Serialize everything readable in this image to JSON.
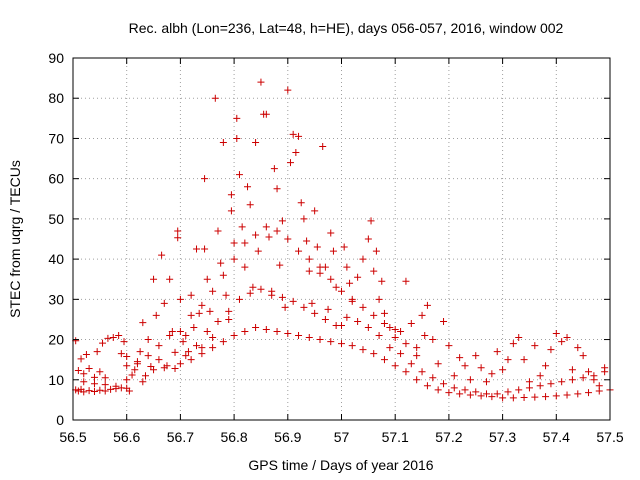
{
  "chart_data": {
    "type": "scatter",
    "title": "Rec. albh (Lon=236, Lat=48, h=HE), days 056-057, 2016, window 002",
    "xlabel": "GPS time / Days of year 2016",
    "ylabel": "STEC from uqrg / TECUs",
    "xlim": [
      56.5,
      57.5
    ],
    "ylim": [
      0,
      90
    ],
    "xticks": [
      "56.5",
      "56.6",
      "56.7",
      "56.8",
      "56.9",
      "57",
      "57.1",
      "57.2",
      "57.3",
      "57.4",
      "57.5"
    ],
    "yticks": [
      "0",
      "10",
      "20",
      "30",
      "40",
      "50",
      "60",
      "70",
      "80",
      "90"
    ],
    "grid": true,
    "marker": "plus",
    "color": "#cc0000",
    "points": [
      [
        56.505,
        7.5
      ],
      [
        56.51,
        7.2
      ],
      [
        56.515,
        7.6
      ],
      [
        56.52,
        7.0
      ],
      [
        56.53,
        7.3
      ],
      [
        56.54,
        7.1
      ],
      [
        56.55,
        7.4
      ],
      [
        56.56,
        7.2
      ],
      [
        56.57,
        7.6
      ],
      [
        56.58,
        7.8
      ],
      [
        56.59,
        8.0
      ],
      [
        56.6,
        7.9
      ],
      [
        56.51,
        12.3
      ],
      [
        56.52,
        11.5
      ],
      [
        56.53,
        12.8
      ],
      [
        56.54,
        10.6
      ],
      [
        56.55,
        12.0
      ],
      [
        56.56,
        10.5
      ],
      [
        56.505,
        19.7
      ],
      [
        56.515,
        15.2
      ],
      [
        56.525,
        16.3
      ],
      [
        56.545,
        17.0
      ],
      [
        56.555,
        19.1
      ],
      [
        56.565,
        20.3
      ],
      [
        56.575,
        20.5
      ],
      [
        56.585,
        21.0
      ],
      [
        56.595,
        19.5
      ],
      [
        56.59,
        16.5
      ],
      [
        56.6,
        15.8
      ],
      [
        56.52,
        9.5
      ],
      [
        56.54,
        9.0
      ],
      [
        56.56,
        8.8
      ],
      [
        56.58,
        8.4
      ],
      [
        56.6,
        10.0
      ],
      [
        56.605,
        7.2
      ],
      [
        56.61,
        11.2
      ],
      [
        56.615,
        12.5
      ],
      [
        56.62,
        14.0
      ],
      [
        56.625,
        17.0
      ],
      [
        56.63,
        9.5
      ],
      [
        56.635,
        11.0
      ],
      [
        56.63,
        24.2
      ],
      [
        56.64,
        20.0
      ],
      [
        56.645,
        13.3
      ],
      [
        56.65,
        35.0
      ],
      [
        56.655,
        26.0
      ],
      [
        56.66,
        15.0
      ],
      [
        56.665,
        41.0
      ],
      [
        56.67,
        29.0
      ],
      [
        56.675,
        13.5
      ],
      [
        56.68,
        35.0
      ],
      [
        56.685,
        22.0
      ],
      [
        56.69,
        16.8
      ],
      [
        56.695,
        47.0
      ],
      [
        56.695,
        45.3
      ],
      [
        56.7,
        30.0
      ],
      [
        56.705,
        19.5
      ],
      [
        56.71,
        21.0
      ],
      [
        56.715,
        17.0
      ],
      [
        56.72,
        31.0
      ],
      [
        56.725,
        23.0
      ],
      [
        56.73,
        42.5
      ],
      [
        56.735,
        26.5
      ],
      [
        56.74,
        18.0
      ],
      [
        56.745,
        60.0
      ],
      [
        56.745,
        42.5
      ],
      [
        56.75,
        35.0
      ],
      [
        56.755,
        27.0
      ],
      [
        56.76,
        20.5
      ],
      [
        56.765,
        80.0
      ],
      [
        56.77,
        47.0
      ],
      [
        56.775,
        39.0
      ],
      [
        56.78,
        69.0
      ],
      [
        56.785,
        31.0
      ],
      [
        56.79,
        25.0
      ],
      [
        56.795,
        56.0
      ],
      [
        56.795,
        52.0
      ],
      [
        56.8,
        44.0
      ],
      [
        56.805,
        75.0
      ],
      [
        56.805,
        70.0
      ],
      [
        56.81,
        61.0
      ],
      [
        56.815,
        48.0
      ],
      [
        56.82,
        38.0
      ],
      [
        56.825,
        58.0
      ],
      [
        56.83,
        53.5
      ],
      [
        56.835,
        33.0
      ],
      [
        56.84,
        69.0
      ],
      [
        56.845,
        42.0
      ],
      [
        56.85,
        84.0
      ],
      [
        56.855,
        76.0
      ],
      [
        56.86,
        76.0
      ],
      [
        56.865,
        45.5
      ],
      [
        56.87,
        32.0
      ],
      [
        56.875,
        62.5
      ],
      [
        56.88,
        57.5
      ],
      [
        56.885,
        38.5
      ],
      [
        56.89,
        49.5
      ],
      [
        56.895,
        28.0
      ],
      [
        56.9,
        82.0
      ],
      [
        56.905,
        64.0
      ],
      [
        56.91,
        71.0
      ],
      [
        56.915,
        66.5
      ],
      [
        56.92,
        70.5
      ],
      [
        56.925,
        54.0
      ],
      [
        56.93,
        50.0
      ],
      [
        56.935,
        44.5
      ],
      [
        56.94,
        37.0
      ],
      [
        56.945,
        29.0
      ],
      [
        56.95,
        52.0
      ],
      [
        56.955,
        43.0
      ],
      [
        56.96,
        36.5
      ],
      [
        56.965,
        68.0
      ],
      [
        56.97,
        38.0
      ],
      [
        56.975,
        27.5
      ],
      [
        56.98,
        46.5
      ],
      [
        56.985,
        42.0
      ],
      [
        56.99,
        33.0
      ],
      [
        57.0,
        23.5
      ],
      [
        57.005,
        43.0
      ],
      [
        57.01,
        38.0
      ],
      [
        57.015,
        34.0
      ],
      [
        57.02,
        29.5
      ],
      [
        57.03,
        35.5
      ],
      [
        57.04,
        40.0
      ],
      [
        57.05,
        45.0
      ],
      [
        57.055,
        49.5
      ],
      [
        57.06,
        37.0
      ],
      [
        57.065,
        42.0
      ],
      [
        57.07,
        30.0
      ],
      [
        57.075,
        34.5
      ],
      [
        57.08,
        26.5
      ],
      [
        57.09,
        23.0
      ],
      [
        57.1,
        20.5
      ],
      [
        57.11,
        22.0
      ],
      [
        57.12,
        34.5
      ],
      [
        57.13,
        24.0
      ],
      [
        57.14,
        18.0
      ],
      [
        57.15,
        26.0
      ],
      [
        57.155,
        21.0
      ],
      [
        57.16,
        28.5
      ],
      [
        57.17,
        20.0
      ],
      [
        57.18,
        14.0
      ],
      [
        57.19,
        24.5
      ],
      [
        57.2,
        18.5
      ],
      [
        57.21,
        11.0
      ],
      [
        57.22,
        15.5
      ],
      [
        57.23,
        13.5
      ],
      [
        57.24,
        10.0
      ],
      [
        57.25,
        16.0
      ],
      [
        57.26,
        13.0
      ],
      [
        57.27,
        9.5
      ],
      [
        57.28,
        11.5
      ],
      [
        57.29,
        17.0
      ],
      [
        57.3,
        12.5
      ],
      [
        57.31,
        15.0
      ],
      [
        57.32,
        19.0
      ],
      [
        57.33,
        20.5
      ],
      [
        57.34,
        15.0
      ],
      [
        57.35,
        9.5
      ],
      [
        57.36,
        18.5
      ],
      [
        57.37,
        11.0
      ],
      [
        57.38,
        13.5
      ],
      [
        57.39,
        17.5
      ],
      [
        57.4,
        21.5
      ],
      [
        57.41,
        19.5
      ],
      [
        57.42,
        20.5
      ],
      [
        57.43,
        12.5
      ],
      [
        57.44,
        18.0
      ],
      [
        57.45,
        16.0
      ],
      [
        57.46,
        12.0
      ],
      [
        57.47,
        10.0
      ],
      [
        57.48,
        8.5
      ],
      [
        57.49,
        13.0
      ],
      [
        56.7,
        14.0
      ],
      [
        56.72,
        15.0
      ],
      [
        56.74,
        16.5
      ],
      [
        56.76,
        18.0
      ],
      [
        56.78,
        19.5
      ],
      [
        56.8,
        21.0
      ],
      [
        56.82,
        22.0
      ],
      [
        56.84,
        23.0
      ],
      [
        56.86,
        22.5
      ],
      [
        56.88,
        22.0
      ],
      [
        56.9,
        21.5
      ],
      [
        56.92,
        21.0
      ],
      [
        56.94,
        20.5
      ],
      [
        56.96,
        20.0
      ],
      [
        56.98,
        19.5
      ],
      [
        57.0,
        19.0
      ],
      [
        57.02,
        18.5
      ],
      [
        57.04,
        17.5
      ],
      [
        57.06,
        16.5
      ],
      [
        57.08,
        15.0
      ],
      [
        57.1,
        13.5
      ],
      [
        57.12,
        12.0
      ],
      [
        57.14,
        10.0
      ],
      [
        57.16,
        8.5
      ],
      [
        57.18,
        7.5
      ],
      [
        57.2,
        6.8
      ],
      [
        57.22,
        6.5
      ],
      [
        57.24,
        6.2
      ],
      [
        57.26,
        6.0
      ],
      [
        57.28,
        5.8
      ],
      [
        57.3,
        5.5
      ],
      [
        57.32,
        5.5
      ],
      [
        57.34,
        5.6
      ],
      [
        57.36,
        5.7
      ],
      [
        57.38,
        5.8
      ],
      [
        57.4,
        6.0
      ],
      [
        57.42,
        6.2
      ],
      [
        57.44,
        6.5
      ],
      [
        57.46,
        6.8
      ],
      [
        57.48,
        7.2
      ],
      [
        57.5,
        7.5
      ],
      [
        56.65,
        12.5
      ],
      [
        56.67,
        13.0
      ],
      [
        56.69,
        12.8
      ],
      [
        56.71,
        16.0
      ],
      [
        56.73,
        18.5
      ],
      [
        56.75,
        22.0
      ],
      [
        56.77,
        24.5
      ],
      [
        56.79,
        27.0
      ],
      [
        56.81,
        30.0
      ],
      [
        56.83,
        31.5
      ],
      [
        56.85,
        32.5
      ],
      [
        56.87,
        31.0
      ],
      [
        56.89,
        30.5
      ],
      [
        56.91,
        29.5
      ],
      [
        56.93,
        28.0
      ],
      [
        56.95,
        26.5
      ],
      [
        56.97,
        25.0
      ],
      [
        56.99,
        23.5
      ],
      [
        57.01,
        25.5
      ],
      [
        57.03,
        24.5
      ],
      [
        57.05,
        23.0
      ],
      [
        57.07,
        21.0
      ],
      [
        57.09,
        18.0
      ],
      [
        57.11,
        16.5
      ],
      [
        57.13,
        14.0
      ],
      [
        57.15,
        12.0
      ],
      [
        57.17,
        10.5
      ],
      [
        57.19,
        9.0
      ],
      [
        57.21,
        8.0
      ],
      [
        57.23,
        7.5
      ],
      [
        57.25,
        7.0
      ],
      [
        57.27,
        6.5
      ],
      [
        57.29,
        6.5
      ],
      [
        57.31,
        7.0
      ],
      [
        57.33,
        7.5
      ],
      [
        57.35,
        8.0
      ],
      [
        57.37,
        8.5
      ],
      [
        57.39,
        9.0
      ],
      [
        57.41,
        9.5
      ],
      [
        57.43,
        10.0
      ],
      [
        57.45,
        10.5
      ],
      [
        57.47,
        11.0
      ],
      [
        57.49,
        12.0
      ],
      [
        56.6,
        13.5
      ],
      [
        56.62,
        14.5
      ],
      [
        56.64,
        16.0
      ],
      [
        56.66,
        18.5
      ],
      [
        56.68,
        21.0
      ],
      [
        56.7,
        22.0
      ],
      [
        56.72,
        26.0
      ],
      [
        56.74,
        28.5
      ],
      [
        56.76,
        32.0
      ],
      [
        56.78,
        36.0
      ],
      [
        56.8,
        40.0
      ],
      [
        56.82,
        44.0
      ],
      [
        56.84,
        46.0
      ],
      [
        56.86,
        48.0
      ],
      [
        56.88,
        47.0
      ],
      [
        56.9,
        45.0
      ],
      [
        56.92,
        42.0
      ],
      [
        56.94,
        40.0
      ],
      [
        56.96,
        38.0
      ],
      [
        56.98,
        35.0
      ],
      [
        57.0,
        32.0
      ],
      [
        57.02,
        30.0
      ],
      [
        57.04,
        28.0
      ],
      [
        57.06,
        26.0
      ],
      [
        57.08,
        24.0
      ],
      [
        57.1,
        22.5
      ],
      [
        57.12,
        19.0
      ],
      [
        57.14,
        16.0
      ]
    ]
  }
}
